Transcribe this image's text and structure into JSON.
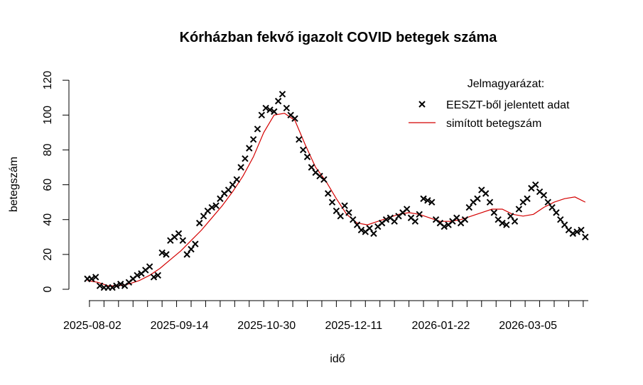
{
  "chart_data": {
    "type": "scatter",
    "title": "Kórházban fekvő igazolt COVID betegek száma",
    "xlabel": "idő",
    "ylabel": "betegszám",
    "x_start": "2025-07-25",
    "x_tick_labels": [
      "2025-08-02",
      "2025-09-14",
      "2025-10-30",
      "2025-12-11",
      "2026-01-22",
      "2026-03-05"
    ],
    "y_ticks": [
      0,
      20,
      40,
      60,
      80,
      100,
      120
    ],
    "ylim": [
      0,
      120
    ],
    "legend": {
      "title": "Jelmagyarázat:",
      "position": "top-right",
      "entries": [
        {
          "label": "EESZT-ből jelentett adat",
          "symbol": "×",
          "color": "#000000"
        },
        {
          "label": "simított betegszám",
          "symbol": "line",
          "color": "#d40000"
        }
      ]
    },
    "series": [
      {
        "name": "EESZT-ből jelentett adat",
        "kind": "points",
        "color": "#000000",
        "x_days": [
          0,
          2,
          4,
          6,
          8,
          10,
          12,
          14,
          16,
          18,
          20,
          22,
          24,
          26,
          28,
          30,
          32,
          34,
          36,
          38,
          40,
          42,
          44,
          46,
          48,
          50,
          52,
          54,
          56,
          58,
          60,
          62,
          64,
          66,
          68,
          70,
          72,
          74,
          76,
          78,
          80,
          82,
          84,
          86,
          88,
          90,
          92,
          94,
          96,
          98,
          100,
          102,
          104,
          106,
          108,
          110,
          112,
          114,
          116,
          118,
          120,
          122,
          124,
          126,
          128,
          130,
          132,
          134,
          136,
          138,
          140,
          142,
          144,
          146,
          148,
          150,
          152,
          154,
          156,
          158,
          160,
          162,
          164,
          166,
          168,
          170,
          172,
          174,
          176,
          178,
          180,
          182,
          184,
          186,
          188,
          190,
          192,
          194,
          196,
          198,
          200,
          202,
          204,
          206,
          208,
          210,
          212,
          214,
          216,
          218,
          220,
          222,
          224,
          226,
          228,
          230,
          232,
          234,
          236,
          238,
          240
        ],
        "values": [
          6,
          6,
          7,
          2,
          1,
          1,
          1,
          2,
          3,
          2,
          4,
          6,
          8,
          9,
          11,
          13,
          7,
          8,
          21,
          20,
          28,
          30,
          32,
          28,
          20,
          23,
          26,
          38,
          42,
          45,
          47,
          48,
          52,
          55,
          57,
          60,
          63,
          70,
          75,
          81,
          86,
          92,
          100,
          104,
          103,
          102,
          108,
          112,
          104,
          100,
          98,
          86,
          80,
          76,
          70,
          67,
          65,
          63,
          55,
          50,
          45,
          42,
          48,
          44,
          40,
          37,
          34,
          33,
          35,
          32,
          36,
          38,
          40,
          41,
          39,
          42,
          44,
          46,
          41,
          39,
          43,
          52,
          51,
          50,
          40,
          38,
          36,
          37,
          39,
          41,
          38,
          40,
          47,
          50,
          52,
          57,
          55,
          50,
          44,
          40,
          38,
          37,
          42,
          39,
          46,
          50,
          52,
          58,
          60,
          56,
          54,
          50,
          47,
          44,
          40,
          37,
          34,
          32,
          33,
          34,
          30
        ]
      },
      {
        "name": "simított betegszám",
        "kind": "line",
        "color": "#d40000",
        "x_days": [
          0,
          5,
          10,
          15,
          20,
          25,
          30,
          35,
          40,
          45,
          50,
          55,
          60,
          65,
          70,
          75,
          80,
          85,
          90,
          95,
          100,
          105,
          110,
          115,
          120,
          125,
          130,
          135,
          140,
          145,
          150,
          155,
          160,
          165,
          170,
          175,
          180,
          185,
          190,
          195,
          200,
          205,
          210,
          215,
          220,
          225,
          230,
          235,
          240
        ],
        "values": [
          5,
          4,
          2,
          2,
          3,
          5,
          8,
          12,
          17,
          22,
          28,
          34,
          41,
          48,
          56,
          65,
          76,
          90,
          100,
          101,
          97,
          83,
          70,
          62,
          52,
          43,
          38,
          37,
          39,
          41,
          43,
          44,
          43,
          41,
          39,
          39,
          40,
          42,
          44,
          46,
          46,
          43,
          42,
          43,
          47,
          50,
          52,
          53,
          50
        ]
      }
    ]
  }
}
